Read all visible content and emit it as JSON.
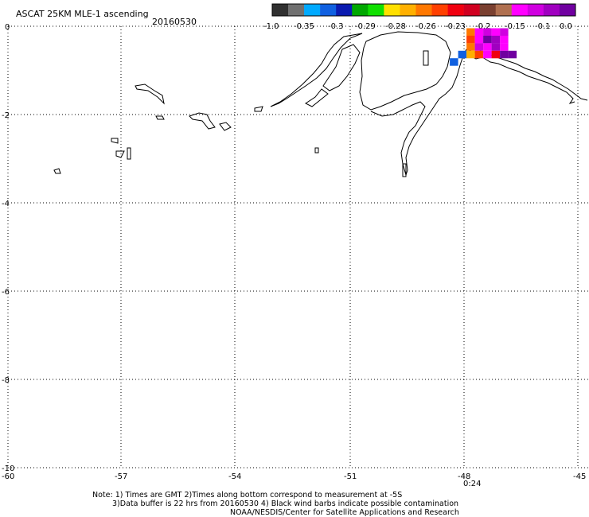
{
  "title": "ASCAT 25KM MLE-1 ascending",
  "date": "20160530",
  "colorbar": {
    "labels": [
      "-1.0",
      "-0.35",
      "-0.3",
      "-0.29",
      "-0.28",
      "-0.26",
      "-0.23",
      "-0.2",
      "-0.15",
      "-0.1",
      "0.0"
    ],
    "colors": [
      "#303030",
      "#707070",
      "#00aaff",
      "#1060e0",
      "#0a1ab0",
      "#00a800",
      "#10e000",
      "#ffe000",
      "#ffb000",
      "#ff7800",
      "#ff4000",
      "#f00010",
      "#d00020",
      "#7a4030",
      "#b07050",
      "#ff00ff",
      "#d000e0",
      "#a000c0",
      "#7000a0"
    ]
  },
  "axes": {
    "x_ticks": [
      "-60",
      "-57",
      "-54",
      "-51",
      "-48",
      "-45"
    ],
    "y_ticks": [
      "0",
      "-2",
      "-4",
      "-6",
      "-8",
      "-10"
    ],
    "lon_range": [
      -60,
      -45
    ],
    "lat_range": [
      -10,
      0
    ]
  },
  "time_label": "0:24",
  "time_label_color": "#8000a0",
  "notes": [
    "Note: 1) Times are GMT 2)Times along bottom correspond to measurement at -5S",
    "3)Data buffer is 22 hrs from 20160530 4) Black wind barbs indicate possible contamination",
    "NOAA/NESDIS/Center for Satellite Applications and Research"
  ],
  "data_pixels": [
    {
      "lon": -47.82,
      "lat": -0.13,
      "color": "#ff7800"
    },
    {
      "lon": -47.6,
      "lat": -0.13,
      "color": "#ff00ff"
    },
    {
      "lon": -47.38,
      "lat": -0.13,
      "color": "#d000e0"
    },
    {
      "lon": -47.16,
      "lat": -0.13,
      "color": "#ff00ff"
    },
    {
      "lon": -46.94,
      "lat": -0.13,
      "color": "#d000e0"
    },
    {
      "lon": -47.82,
      "lat": -0.3,
      "color": "#ff4000"
    },
    {
      "lon": -47.6,
      "lat": -0.3,
      "color": "#ff00ff"
    },
    {
      "lon": -47.38,
      "lat": -0.3,
      "color": "#7000a0"
    },
    {
      "lon": -47.16,
      "lat": -0.3,
      "color": "#a000c0"
    },
    {
      "lon": -46.94,
      "lat": -0.3,
      "color": "#ff00ff"
    },
    {
      "lon": -47.82,
      "lat": -0.47,
      "color": "#ff7800"
    },
    {
      "lon": -47.6,
      "lat": -0.47,
      "color": "#d000e0"
    },
    {
      "lon": -47.38,
      "lat": -0.47,
      "color": "#ff00ff"
    },
    {
      "lon": -47.16,
      "lat": -0.47,
      "color": "#a000c0"
    },
    {
      "lon": -46.94,
      "lat": -0.47,
      "color": "#ff00ff"
    },
    {
      "lon": -48.04,
      "lat": -0.64,
      "color": "#1060e0"
    },
    {
      "lon": -47.82,
      "lat": -0.64,
      "color": "#ffb000"
    },
    {
      "lon": -47.6,
      "lat": -0.64,
      "color": "#ff4000"
    },
    {
      "lon": -47.38,
      "lat": -0.64,
      "color": "#ff00ff"
    },
    {
      "lon": -47.16,
      "lat": -0.64,
      "color": "#f00010"
    },
    {
      "lon": -46.94,
      "lat": -0.64,
      "color": "#7000a0"
    },
    {
      "lon": -46.72,
      "lat": -0.64,
      "color": "#7000a0"
    },
    {
      "lon": -48.26,
      "lat": -0.81,
      "color": "#1060e0"
    }
  ]
}
